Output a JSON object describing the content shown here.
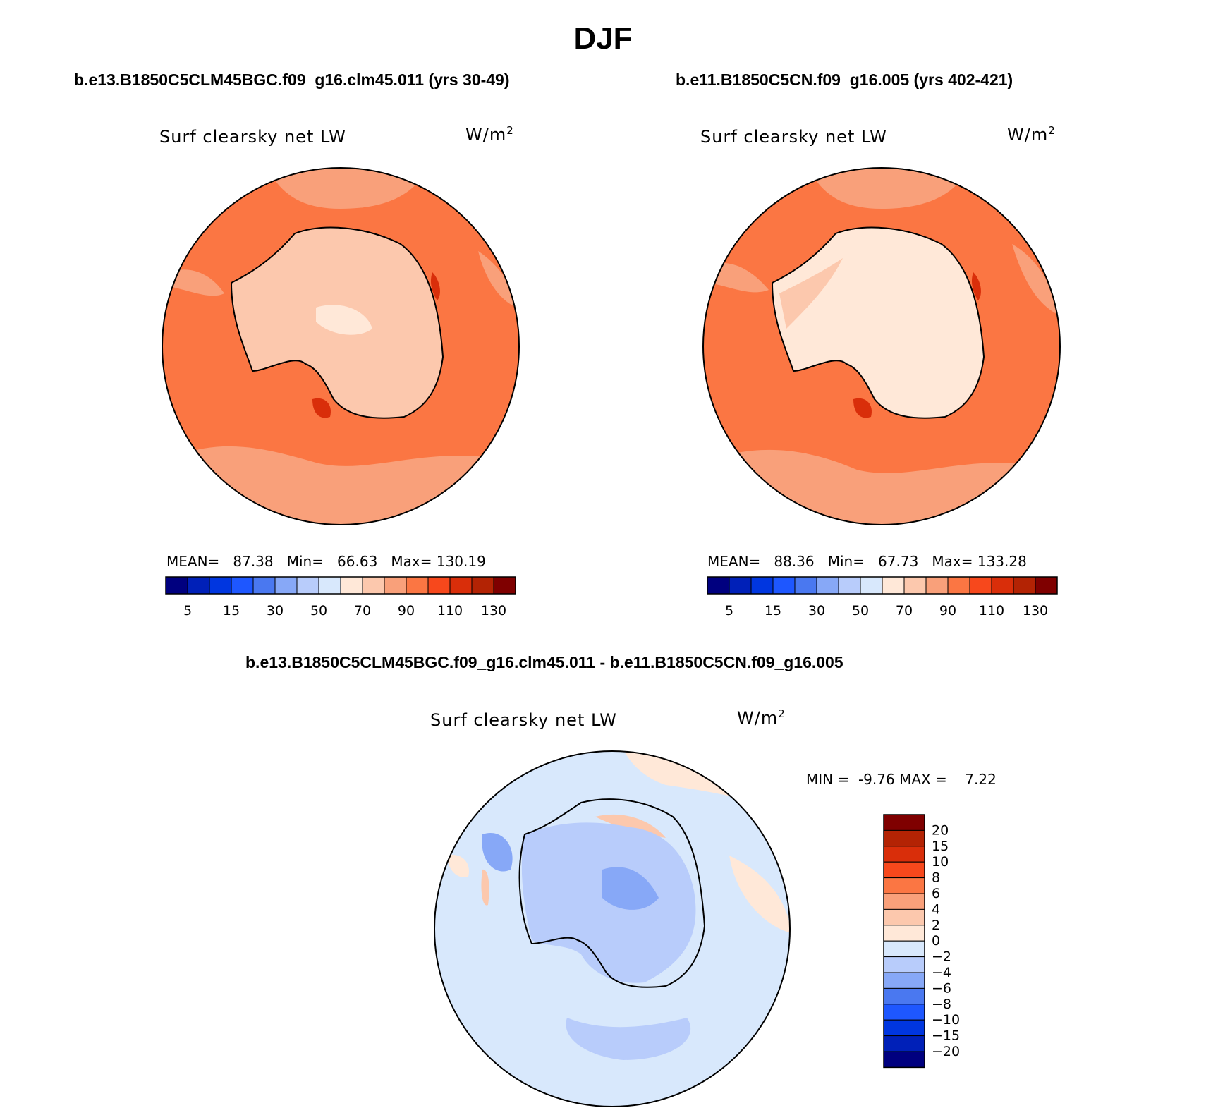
{
  "title": "DJF",
  "panels": [
    {
      "case_title": "b.e13.B1850C5CLM45BGC.f09_g16.clm45.011 (yrs 30-49)",
      "variable_label": "Surf clearsky net LW",
      "units_base": "W/m",
      "units_exp": "2",
      "stats": {
        "mean_label": "MEAN=",
        "mean": "87.38",
        "min_label": "Min=",
        "min": "66.63",
        "max_label": "Max=",
        "max": "130.19"
      }
    },
    {
      "case_title": "b.e11.B1850C5CN.f09_g16.005 (yrs 402-421)",
      "variable_label": "Surf clearsky net LW",
      "units_base": "W/m",
      "units_exp": "2",
      "stats": {
        "mean_label": "MEAN=",
        "mean": "88.36",
        "min_label": "Min=",
        "min": "67.73",
        "max_label": "Max=",
        "max": "133.28"
      }
    }
  ],
  "diff_panel": {
    "case_title": "b.e13.B1850C5CLM45BGC.f09_g16.clm45.011 - b.e11.B1850C5CN.f09_g16.005",
    "variable_label": "Surf clearsky net LW",
    "units_base": "W/m",
    "units_exp": "2",
    "stats": {
      "min_label": "MIN =",
      "min": "-9.76",
      "max_label": "MAX =",
      "max": "7.22"
    }
  },
  "colorbar_abs": {
    "colors": [
      "#00007f",
      "#0020b8",
      "#0036e0",
      "#1e57ff",
      "#4a78f0",
      "#87a8f7",
      "#b8ccfb",
      "#d8e8fc",
      "#ffe8d8",
      "#fcc8ad",
      "#f9a07a",
      "#fb7643",
      "#f7481c",
      "#d92e0a",
      "#b32304",
      "#7f0000"
    ],
    "tick_labels": [
      "5",
      "15",
      "30",
      "50",
      "70",
      "90",
      "110",
      "130"
    ]
  },
  "colorbar_diff": {
    "colors_top_to_bottom": [
      "#7f0000",
      "#b32304",
      "#d92e0a",
      "#f7481c",
      "#fb7643",
      "#f9a07a",
      "#fcc8ad",
      "#ffe8d8",
      "#d8e8fc",
      "#b8ccfb",
      "#87a8f7",
      "#4a78f0",
      "#1e57ff",
      "#0036e0",
      "#0020b8",
      "#00007f"
    ],
    "tick_labels": [
      "20",
      "15",
      "10",
      "8",
      "6",
      "4",
      "2",
      "0",
      "−2",
      "−4",
      "−6",
      "−8",
      "−10",
      "−15",
      "−20"
    ]
  },
  "map_colors": {
    "ocean_abs": "#fb7643",
    "ocean_abs_light": "#f9a07a",
    "continent_abs": "#fcc8ad",
    "continent_abs_light": "#ffe8d8",
    "hot_spot": "#d92e0a",
    "diff_base": "#d8e8fc",
    "diff_neg1": "#b8ccfb",
    "diff_neg2": "#87a8f7",
    "diff_neg3": "#4a78f0",
    "diff_pos1": "#ffe8d8",
    "diff_pos2": "#fcc8ad"
  }
}
